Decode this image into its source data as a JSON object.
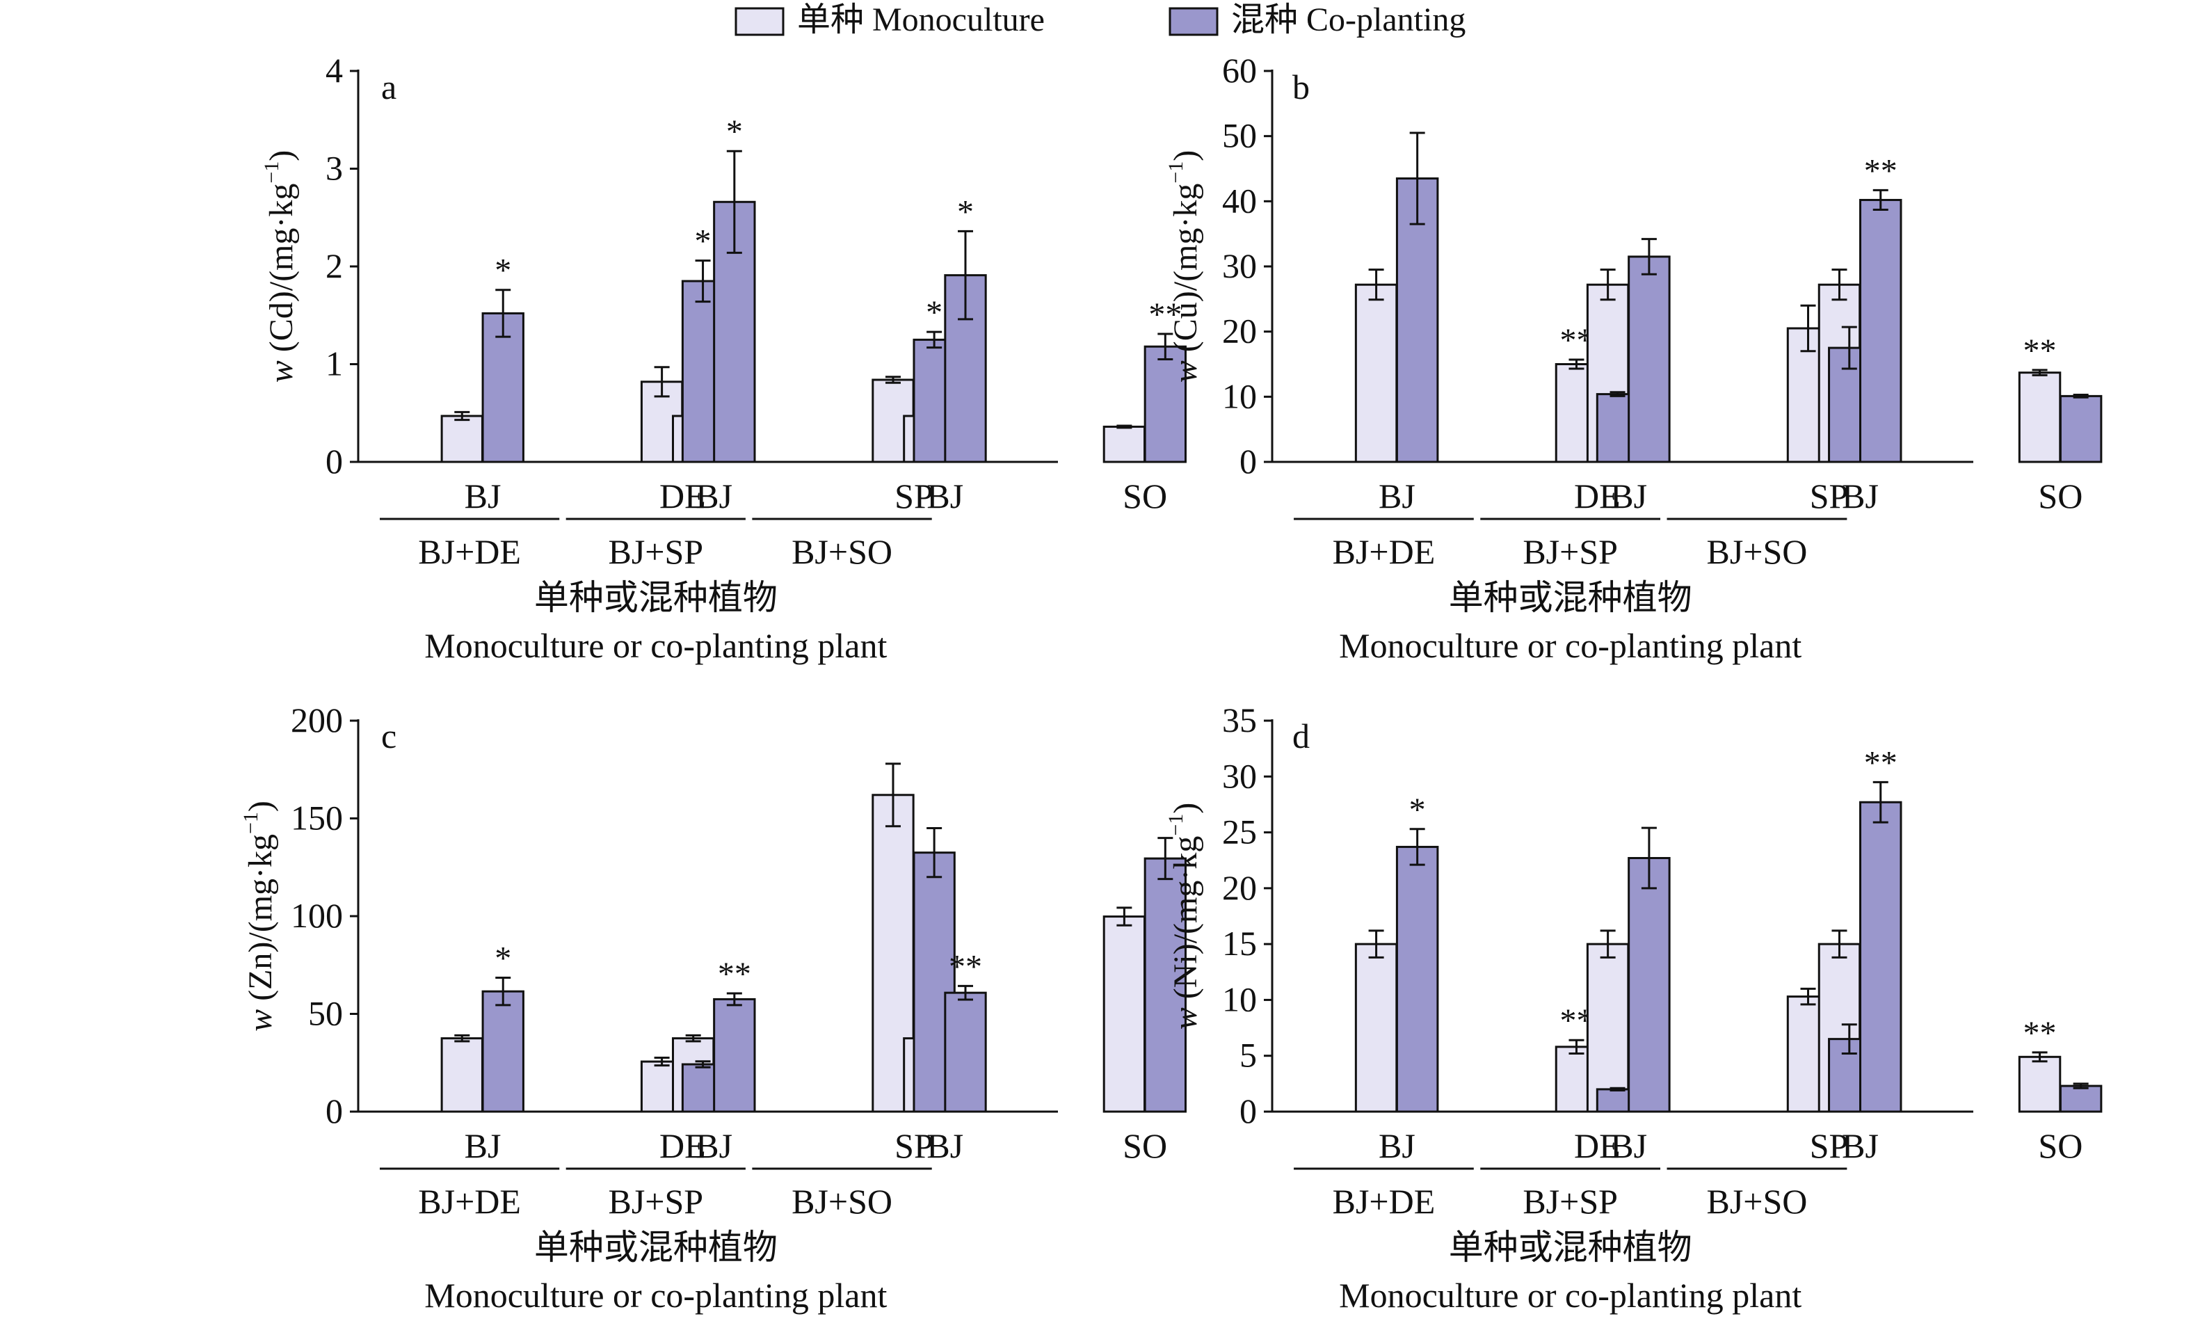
{
  "legend": {
    "items": [
      {
        "label": "单种 Monoculture",
        "color": "#e6e4f4"
      },
      {
        "label": "混种 Co-planting",
        "color": "#9a97cc"
      }
    ]
  },
  "x_title_cn": "单种或混种植物",
  "x_title_en": "Monoculture or co-planting plant",
  "chart_data": [
    {
      "type": "bar",
      "panel": "a",
      "ylabel": "w (Cd)/(mg·kg⁻¹)",
      "ylabel_var": "w",
      "ylabel_rest": " (Cd)/(mg·kg",
      "ylabel_sup": "−1",
      "ylabel_end": ")",
      "ylim": [
        0,
        4
      ],
      "yticks": [
        "0",
        "1",
        "2",
        "3",
        "4"
      ],
      "groups": [
        "BJ+DE",
        "BJ+SP",
        "BJ+SO"
      ],
      "categories": [
        "BJ",
        "DE",
        "BJ",
        "SP",
        "BJ",
        "SO"
      ],
      "series": [
        {
          "name": "单种 Monoculture",
          "values": [
            0.47,
            0.82,
            0.47,
            0.84,
            0.47,
            0.36
          ],
          "errors": [
            0.04,
            0.15,
            0.04,
            0.03,
            0.04,
            0.01
          ]
        },
        {
          "name": "混种 Co-planting",
          "values": [
            1.52,
            1.85,
            2.66,
            1.25,
            1.91,
            1.18
          ],
          "errors": [
            0.24,
            0.21,
            0.52,
            0.08,
            0.45,
            0.13
          ]
        }
      ],
      "significance": [
        [
          "",
          "*"
        ],
        [
          "",
          "*"
        ],
        [
          "",
          "*"
        ],
        [
          "",
          "*"
        ],
        [
          "",
          "*"
        ],
        [
          "",
          "**"
        ]
      ]
    },
    {
      "type": "bar",
      "panel": "b",
      "ylabel": "w (Cu)/(mg·kg⁻¹)",
      "ylabel_var": "w",
      "ylabel_rest": " (Cu)/(mg·kg",
      "ylabel_sup": "−1",
      "ylabel_end": ")",
      "ylim": [
        0,
        60
      ],
      "yticks": [
        "0",
        "10",
        "20",
        "30",
        "40",
        "50",
        "60"
      ],
      "groups": [
        "BJ+DE",
        "BJ+SP",
        "BJ+SO"
      ],
      "categories": [
        "BJ",
        "DE",
        "BJ",
        "SP",
        "BJ",
        "SO"
      ],
      "series": [
        {
          "name": "单种 Monoculture",
          "values": [
            27.2,
            15.0,
            27.2,
            20.5,
            27.2,
            13.7
          ],
          "errors": [
            2.3,
            0.7,
            2.3,
            3.5,
            2.3,
            0.4
          ]
        },
        {
          "name": "混种 Co-planting",
          "values": [
            43.5,
            10.4,
            31.5,
            17.5,
            40.2,
            10.1
          ],
          "errors": [
            7.0,
            0.3,
            2.7,
            3.2,
            1.5,
            0.2
          ]
        }
      ],
      "significance": [
        [
          "",
          ""
        ],
        [
          "**",
          ""
        ],
        [
          "",
          ""
        ],
        [
          "",
          ""
        ],
        [
          "",
          "**"
        ],
        [
          "**",
          ""
        ]
      ]
    },
    {
      "type": "bar",
      "panel": "c",
      "ylabel": "w (Zn)/(mg·kg⁻¹)",
      "ylabel_var": "w",
      "ylabel_rest": " (Zn)/(mg·kg",
      "ylabel_sup": "−1",
      "ylabel_end": ")",
      "ylim": [
        0,
        200
      ],
      "yticks": [
        "0",
        "50",
        "100",
        "150",
        "200"
      ],
      "groups": [
        "BJ+DE",
        "BJ+SP",
        "BJ+SO"
      ],
      "categories": [
        "BJ",
        "DE",
        "BJ",
        "SP",
        "BJ",
        "SO"
      ],
      "series": [
        {
          "name": "单种 Monoculture",
          "values": [
            37.5,
            25.6,
            37.5,
            162,
            37.5,
            99.8
          ],
          "errors": [
            1.5,
            2.0,
            1.5,
            16,
            1.5,
            4.5
          ]
        },
        {
          "name": "混种 Co-planting",
          "values": [
            61.5,
            24.2,
            57.5,
            132.5,
            60.8,
            129.5
          ],
          "errors": [
            7.0,
            1.5,
            3.0,
            12.5,
            3.5,
            10.5
          ]
        }
      ],
      "significance": [
        [
          "",
          "*"
        ],
        [
          "",
          ""
        ],
        [
          "",
          "**"
        ],
        [
          "",
          ""
        ],
        [
          "",
          "**"
        ],
        [
          "",
          ""
        ]
      ]
    },
    {
      "type": "bar",
      "panel": "d",
      "ylabel": "w (Ni)/(mg·kg⁻¹)",
      "ylabel_var": "w",
      "ylabel_rest": " (Ni)/(mg·kg",
      "ylabel_sup": "−1",
      "ylabel_end": ")",
      "ylim": [
        0,
        35
      ],
      "yticks": [
        "0",
        "5",
        "10",
        "15",
        "20",
        "25",
        "30",
        "35"
      ],
      "groups": [
        "BJ+DE",
        "BJ+SP",
        "BJ+SO"
      ],
      "categories": [
        "BJ",
        "DE",
        "BJ",
        "SP",
        "BJ",
        "SO"
      ],
      "series": [
        {
          "name": "单种 Monoculture",
          "values": [
            15.0,
            5.8,
            15.0,
            10.3,
            15.0,
            4.9
          ],
          "errors": [
            1.2,
            0.6,
            1.2,
            0.7,
            1.2,
            0.4
          ]
        },
        {
          "name": "混种 Co-planting",
          "values": [
            23.7,
            2.0,
            22.7,
            6.5,
            27.7,
            2.3
          ],
          "errors": [
            1.6,
            0.1,
            2.7,
            1.3,
            1.8,
            0.2
          ]
        }
      ],
      "significance": [
        [
          "",
          "*"
        ],
        [
          "**",
          ""
        ],
        [
          "",
          ""
        ],
        [
          "",
          ""
        ],
        [
          "",
          "**"
        ],
        [
          "**",
          ""
        ]
      ]
    }
  ]
}
